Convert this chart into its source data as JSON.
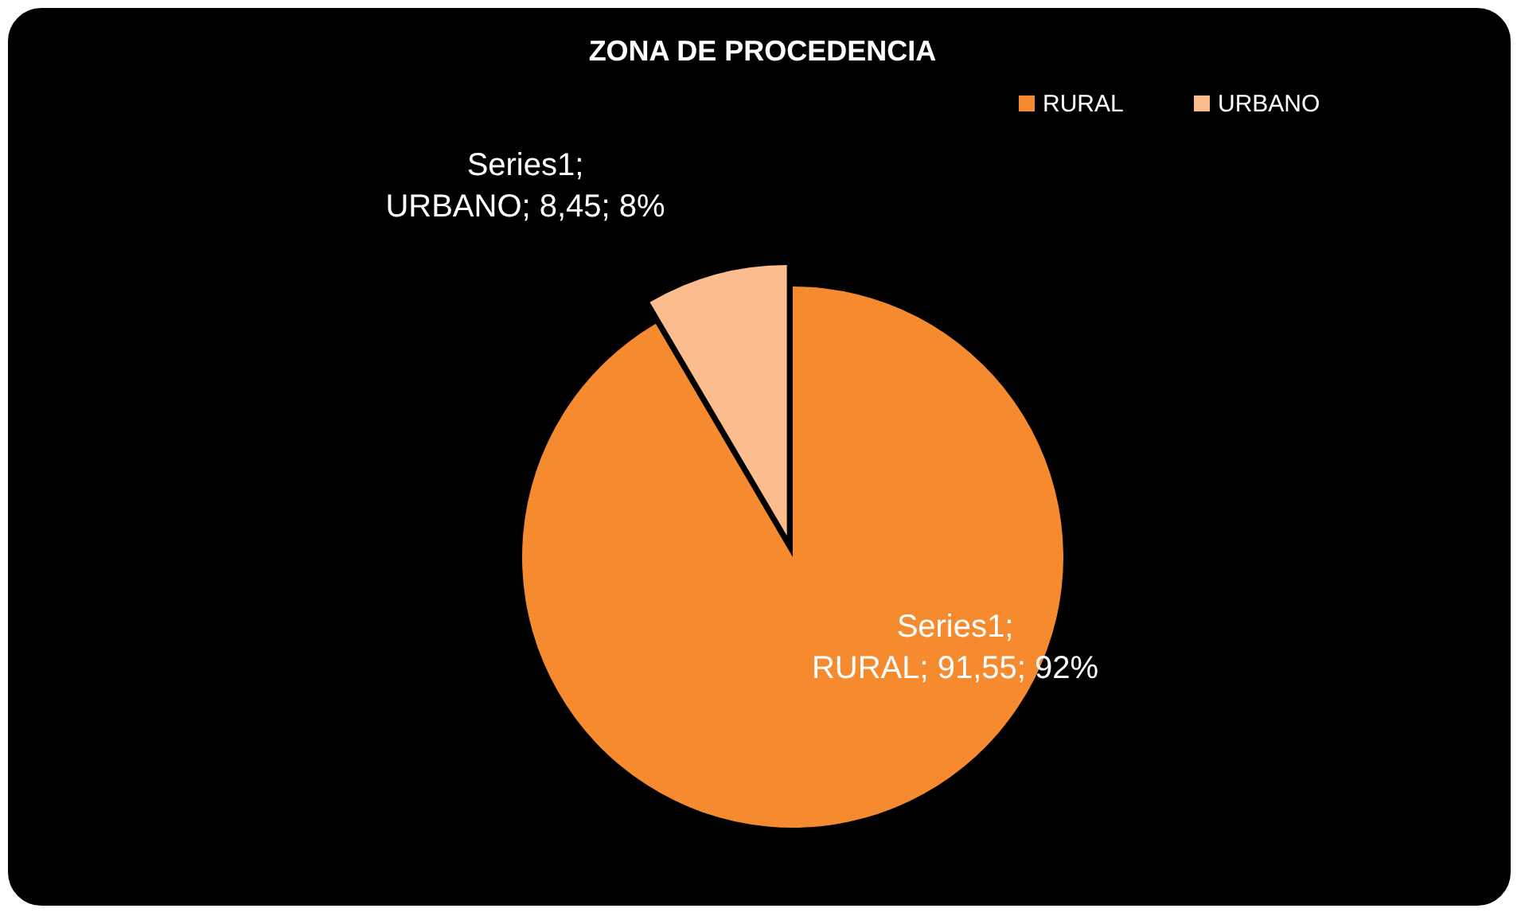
{
  "chart_data": {
    "type": "pie",
    "title": "ZONA DE PROCEDENCIA",
    "categories": [
      "RURAL",
      "URBANO"
    ],
    "series": [
      {
        "values": [
          91.55,
          8.45
        ],
        "colors": [
          "#f58a2f",
          "#fbbd8e"
        ],
        "value_labels": [
          "Series1; RURAL; 91,55; 92%",
          "Series1; URBANO; 8,45; 8%"
        ]
      }
    ],
    "legend": "top"
  }
}
